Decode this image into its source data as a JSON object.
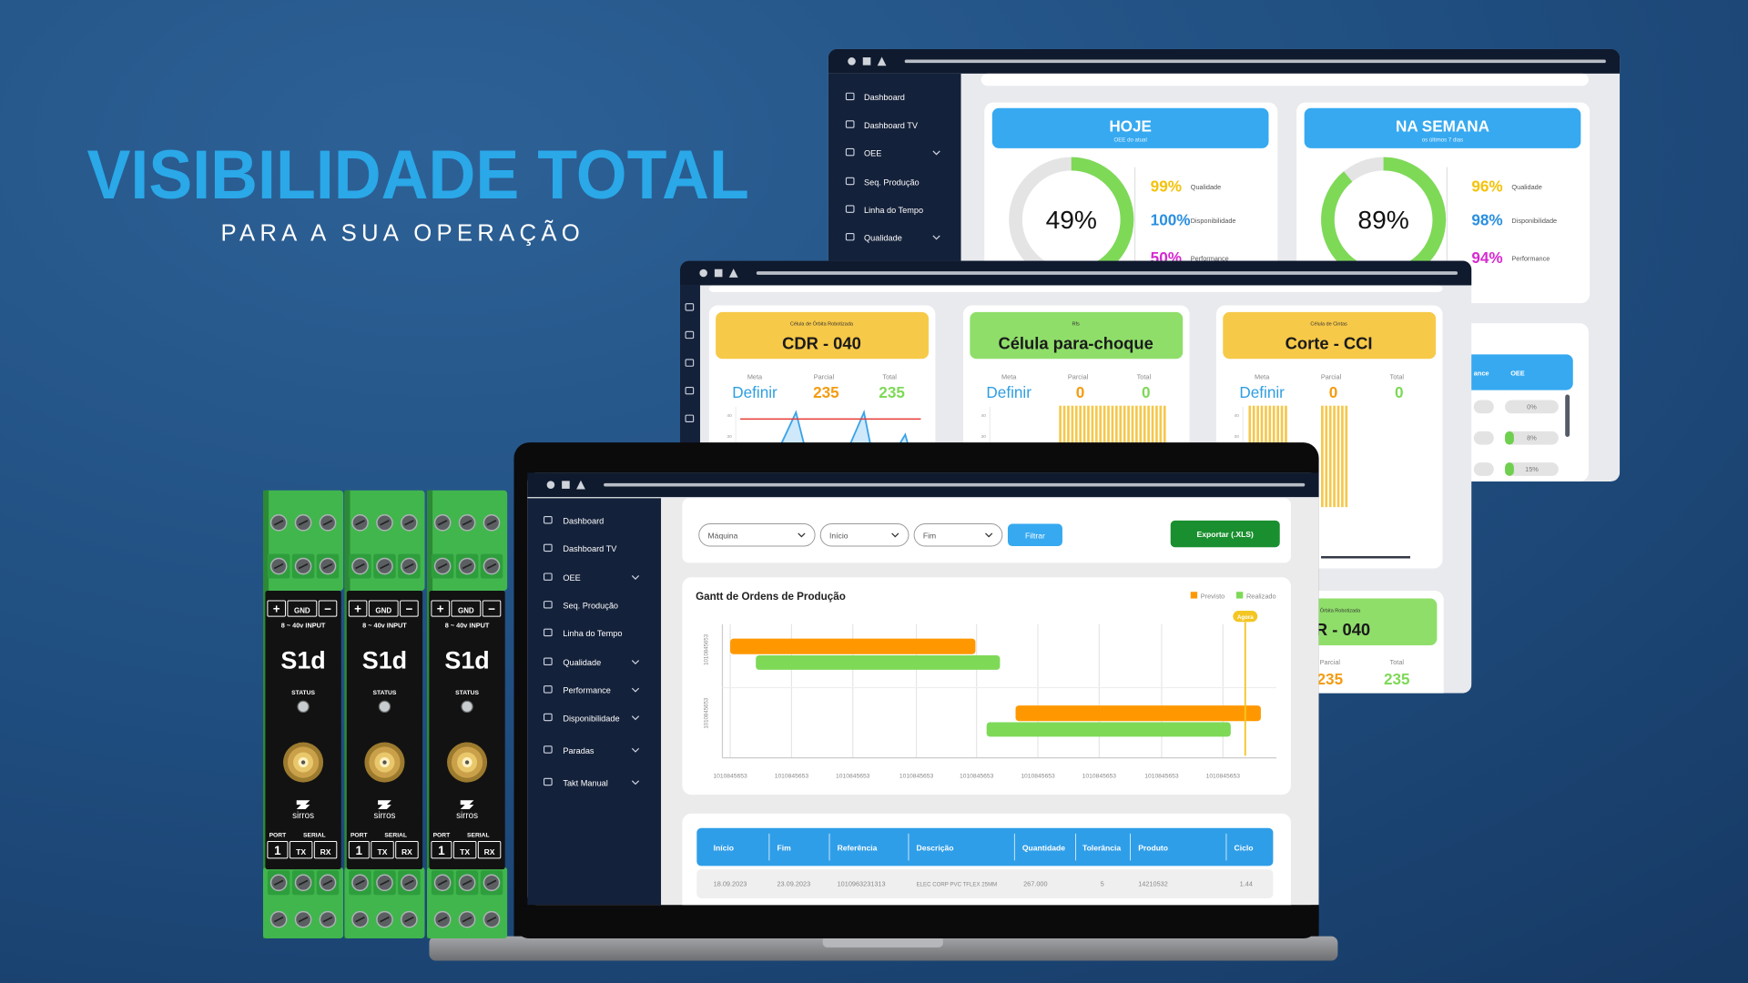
{
  "header": {
    "title": "VISIBILIDADE TOTAL",
    "subtitle": "PARA A SUA OPERAÇÃO"
  },
  "devices": {
    "polarity": [
      "+",
      "GND",
      "−"
    ],
    "input": "8 ~ 40v INPUT",
    "model": "S1d",
    "status": "STATUS",
    "brand": "sirros",
    "port_header": [
      "PORT",
      "SERIAL"
    ],
    "port_labels": [
      "1",
      "TX",
      "RX"
    ]
  },
  "screen_oee": {
    "sidebar": [
      "Dashboard",
      "Dashboard TV",
      "OEE",
      "Seq. Produção",
      "Linha do Tempo",
      "Qualidade"
    ],
    "cards": [
      {
        "title": "HOJE",
        "subtitle": "OEE do atual",
        "value": "49%",
        "metrics": [
          {
            "value": "99%",
            "label": "Qualidade"
          },
          {
            "value": "100%",
            "label": "Disponibilidade"
          },
          {
            "value": "50%",
            "label": "Performance"
          }
        ]
      },
      {
        "title": "NA SEMANA",
        "subtitle": "os últimos 7 dias",
        "value": "89%",
        "metrics": [
          {
            "value": "96%",
            "label": "Qualidade"
          },
          {
            "value": "98%",
            "label": "Disponibilidade"
          },
          {
            "value": "94%",
            "label": "Performance"
          }
        ]
      }
    ],
    "table": {
      "headers": [
        "ance",
        "OEE"
      ],
      "values": [
        "0%",
        "8%",
        "15%"
      ]
    }
  },
  "screen_cells": {
    "cards": [
      {
        "caption": "Célula de Órbita Robotizada",
        "title": "CDR - 040",
        "stats": [
          {
            "label": "Meta",
            "value": "Definir"
          },
          {
            "label": "Parcial",
            "value": "235"
          },
          {
            "label": "Total",
            "value": "235"
          }
        ],
        "yticks": [
          "40",
          "30",
          "20"
        ]
      },
      {
        "caption": "Rfs",
        "title": "Célula para-choque",
        "stats": [
          {
            "label": "Meta",
            "value": "Definir"
          },
          {
            "label": "Parcial",
            "value": "0"
          },
          {
            "label": "Total",
            "value": "0"
          }
        ],
        "yticks": [
          "40",
          "30",
          "20"
        ]
      },
      {
        "caption": "Célula de Cintas",
        "title": "Corte - CCI",
        "stats": [
          {
            "label": "Meta",
            "value": "Definir"
          },
          {
            "label": "Parcial",
            "value": "0"
          },
          {
            "label": "Total",
            "value": "0"
          }
        ],
        "yticks": [
          "40",
          "30",
          "20"
        ]
      }
    ],
    "partial_card": {
      "caption": "Órbita Robotizada",
      "title": "R - 040",
      "stats": [
        {
          "label": "Parcial",
          "value": "235"
        },
        {
          "label": "Total",
          "value": "235"
        }
      ]
    }
  },
  "screen_orders": {
    "sidebar": [
      "Dashboard",
      "Dashboard TV",
      "OEE",
      "Seq. Produção",
      "Linha do Tempo",
      "Qualidade",
      "Performance",
      "Disponibilidade",
      "Paradas",
      "Takt Manual"
    ],
    "filters": {
      "machine": "Máquina",
      "start": "Início",
      "end": "Fim",
      "filter": "Filtrar",
      "export": "Exportar (.XLS)"
    },
    "gantt": {
      "title": "Gantt de Ordens de Produção",
      "legend": [
        "Previsto",
        "Realizado"
      ],
      "now": "Agora",
      "rows": [
        "1010845653",
        "1010845653"
      ],
      "x_labels": [
        "1010845653",
        "1010845653",
        "1010845653",
        "1010845653",
        "1010845653",
        "1010845653",
        "1010845653",
        "1010845653",
        "1010845653"
      ]
    },
    "table": {
      "headers": [
        "Início",
        "Fim",
        "Referência",
        "Descrição",
        "Quantidade",
        "Tolerância",
        "Produto",
        "Ciclo"
      ],
      "rows": [
        [
          "18.09.2023",
          "23.09.2023",
          "1010963231313",
          "ELEC CORP PVC TFLEX 25MM",
          "267.000",
          "5",
          "14210532",
          "1.44"
        ]
      ]
    }
  }
}
